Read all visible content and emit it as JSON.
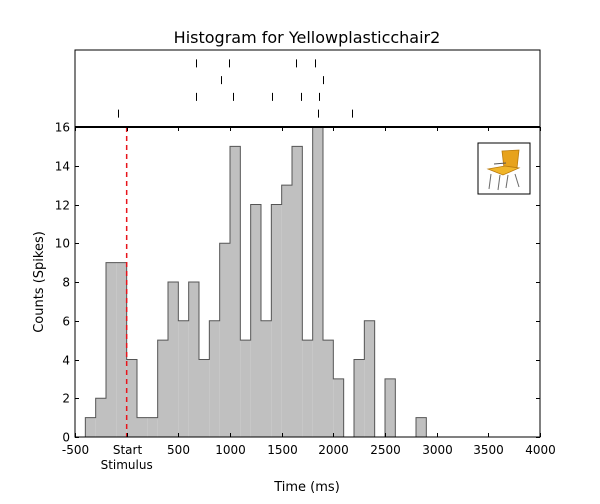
{
  "chart_data": {
    "type": "bar",
    "title": "Histogram for Yellowplasticchair2",
    "xlabel": "Time (ms)",
    "ylabel": "Counts (Spikes)",
    "xlim": [
      -500,
      4000
    ],
    "ylim": [
      0,
      16
    ],
    "x_ticks": [
      {
        "value": -500,
        "label": "-500"
      },
      {
        "value": 0,
        "label": "Start"
      },
      {
        "value": 500,
        "label": "500"
      },
      {
        "value": 1000,
        "label": "1000"
      },
      {
        "value": 1500,
        "label": "1500"
      },
      {
        "value": 2000,
        "label": "2000"
      },
      {
        "value": 2500,
        "label": "2500"
      },
      {
        "value": 3000,
        "label": "3000"
      },
      {
        "value": 3500,
        "label": "3500"
      },
      {
        "value": 4000,
        "label": "4000"
      }
    ],
    "x_tick_sublabel": "Stimulus",
    "y_ticks": [
      0,
      2,
      4,
      6,
      8,
      10,
      12,
      14,
      16
    ],
    "bin_width": 100,
    "bin_starts": [
      -400,
      -300,
      -200,
      -100,
      0,
      100,
      200,
      300,
      400,
      500,
      600,
      700,
      800,
      900,
      1000,
      1100,
      1200,
      1300,
      1400,
      1500,
      1600,
      1700,
      1800,
      1900,
      2000,
      2100,
      2200,
      2300,
      2400,
      2500,
      2600,
      2700,
      2800,
      2900
    ],
    "values": [
      1,
      2,
      9,
      9,
      4,
      1,
      1,
      5,
      8,
      6,
      8,
      4,
      6,
      10,
      15,
      5,
      12,
      6,
      12,
      13,
      15,
      5,
      16,
      5,
      3,
      0,
      4,
      6,
      0,
      3,
      0,
      0,
      1,
      0
    ],
    "stimulus_marker": {
      "x": 0,
      "style": "dashed",
      "color": "#e8141b"
    },
    "raster_trials": [
      [
        670,
        990,
        1640,
        1820
      ],
      [
        910,
        1900
      ],
      [
        670,
        1030,
        1410,
        1690,
        1860
      ],
      [
        -80,
        1850,
        2180
      ]
    ],
    "colors": {
      "bar_fill": "#c0c0c0",
      "bar_edge": "#555555",
      "stimulus_line": "#e8141b"
    },
    "grid": false,
    "inset_image": "yellow-plastic-chair"
  }
}
